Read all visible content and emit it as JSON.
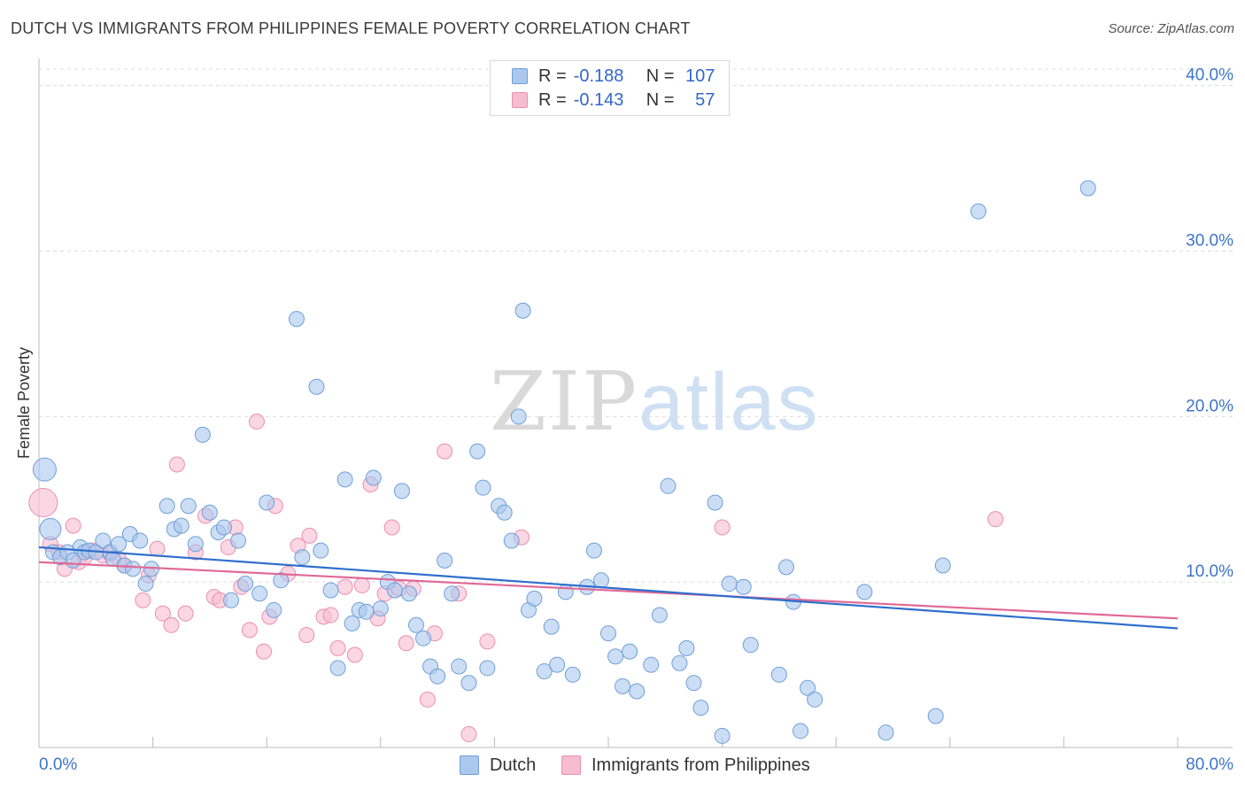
{
  "title": "DUTCH VS IMMIGRANTS FROM PHILIPPINES FEMALE POVERTY CORRELATION CHART",
  "source": "Source: ZipAtlas.com",
  "watermark": {
    "zip": "ZIP",
    "atlas": "atlas"
  },
  "legend": {
    "dutch": {
      "r_label": "R =",
      "r_value": "-0.188",
      "n_label": "N =",
      "n_value": "107"
    },
    "philippines": {
      "r_label": "R =",
      "r_value": "-0.143",
      "n_label": "N =",
      "n_value": "57"
    }
  },
  "bottom_legend": {
    "dutch": "Dutch",
    "philippines": "Immigrants from Philippines"
  },
  "colors": {
    "dutch_fill": "#aac8ee",
    "dutch_stroke": "#6f9fd8",
    "dutch_line": "#2f6fcc",
    "ph_fill": "#f6bcd0",
    "ph_stroke": "#ec8eb0",
    "ph_line": "#e06a96",
    "tick_label": "#3d74c9",
    "grid": "#dcdcdc"
  },
  "chart_data": {
    "type": "scatter",
    "title": "DUTCH VS IMMIGRANTS FROM PHILIPPINES FEMALE POVERTY CORRELATION CHART",
    "xlabel": "",
    "ylabel": "Female Poverty",
    "xlim": [
      0,
      80
    ],
    "ylim": [
      0,
      41
    ],
    "x_tick_labels": [
      "0.0%",
      "80.0%"
    ],
    "y_ticks": [
      10,
      20,
      30,
      40
    ],
    "y_tick_labels": [
      "10.0%",
      "20.0%",
      "30.0%",
      "40.0%"
    ],
    "grid": true,
    "series": [
      {
        "name": "Dutch",
        "points": [
          [
            0.4,
            16.8
          ],
          [
            0.8,
            13.2
          ],
          [
            1.0,
            11.8
          ],
          [
            1.5,
            11.5
          ],
          [
            2.0,
            11.8
          ],
          [
            2.4,
            11.3
          ],
          [
            2.9,
            12.1
          ],
          [
            3.2,
            11.8
          ],
          [
            3.5,
            11.9
          ],
          [
            4.0,
            11.8
          ],
          [
            4.5,
            12.5
          ],
          [
            5.0,
            11.8
          ],
          [
            5.2,
            11.4
          ],
          [
            5.6,
            12.3
          ],
          [
            6.0,
            11.0
          ],
          [
            6.4,
            12.9
          ],
          [
            6.6,
            10.8
          ],
          [
            7.1,
            12.5
          ],
          [
            7.5,
            9.9
          ],
          [
            7.9,
            10.8
          ],
          [
            9.0,
            14.6
          ],
          [
            9.5,
            13.2
          ],
          [
            10.0,
            13.4
          ],
          [
            10.5,
            14.6
          ],
          [
            11.0,
            12.3
          ],
          [
            11.5,
            18.9
          ],
          [
            12.0,
            14.2
          ],
          [
            12.6,
            13.0
          ],
          [
            13.0,
            13.3
          ],
          [
            13.5,
            8.9
          ],
          [
            14.0,
            12.5
          ],
          [
            14.5,
            9.9
          ],
          [
            15.5,
            9.3
          ],
          [
            16.0,
            14.8
          ],
          [
            16.5,
            8.3
          ],
          [
            17.0,
            10.1
          ],
          [
            18.1,
            25.9
          ],
          [
            18.5,
            11.5
          ],
          [
            19.5,
            21.8
          ],
          [
            19.8,
            11.9
          ],
          [
            20.5,
            9.5
          ],
          [
            21.0,
            4.8
          ],
          [
            21.5,
            16.2
          ],
          [
            22.0,
            7.5
          ],
          [
            22.5,
            8.3
          ],
          [
            23.0,
            8.2
          ],
          [
            23.5,
            16.3
          ],
          [
            24.0,
            8.4
          ],
          [
            24.5,
            10.0
          ],
          [
            25.0,
            9.5
          ],
          [
            25.5,
            15.5
          ],
          [
            26.0,
            9.3
          ],
          [
            26.5,
            7.4
          ],
          [
            27.0,
            6.6
          ],
          [
            27.5,
            4.9
          ],
          [
            28.0,
            4.3
          ],
          [
            28.5,
            11.3
          ],
          [
            29.0,
            9.3
          ],
          [
            29.5,
            4.9
          ],
          [
            30.2,
            3.9
          ],
          [
            30.8,
            17.9
          ],
          [
            31.2,
            15.7
          ],
          [
            31.5,
            4.8
          ],
          [
            32.3,
            14.6
          ],
          [
            32.7,
            14.2
          ],
          [
            33.2,
            12.5
          ],
          [
            33.7,
            20.0
          ],
          [
            34.0,
            26.4
          ],
          [
            34.4,
            8.3
          ],
          [
            34.8,
            9.0
          ],
          [
            35.5,
            4.6
          ],
          [
            36.0,
            7.3
          ],
          [
            36.4,
            5.0
          ],
          [
            37.0,
            9.4
          ],
          [
            37.5,
            4.4
          ],
          [
            38.5,
            9.7
          ],
          [
            39.0,
            11.9
          ],
          [
            39.5,
            10.1
          ],
          [
            40.0,
            6.9
          ],
          [
            40.5,
            5.5
          ],
          [
            41.0,
            3.7
          ],
          [
            41.5,
            5.8
          ],
          [
            42.0,
            3.4
          ],
          [
            43.0,
            5.0
          ],
          [
            43.6,
            8.0
          ],
          [
            44.2,
            15.8
          ],
          [
            45.0,
            5.1
          ],
          [
            45.5,
            6.0
          ],
          [
            46.0,
            3.9
          ],
          [
            46.5,
            2.4
          ],
          [
            47.5,
            14.8
          ],
          [
            48.0,
            0.7
          ],
          [
            48.5,
            9.9
          ],
          [
            49.5,
            9.7
          ],
          [
            50.0,
            6.2
          ],
          [
            52.0,
            4.4
          ],
          [
            52.5,
            10.9
          ],
          [
            53.0,
            8.8
          ],
          [
            53.5,
            1.0
          ],
          [
            54.0,
            3.6
          ],
          [
            54.5,
            2.9
          ],
          [
            58.0,
            9.4
          ],
          [
            59.5,
            0.9
          ],
          [
            63.0,
            1.9
          ],
          [
            63.5,
            11.0
          ],
          [
            66.0,
            32.4
          ],
          [
            73.7,
            33.8
          ]
        ],
        "trend": {
          "x": [
            0,
            80
          ],
          "y": [
            12.1,
            7.2
          ]
        }
      },
      {
        "name": "Immigrants from Philippines",
        "points": [
          [
            0.3,
            14.8
          ],
          [
            0.8,
            12.3
          ],
          [
            1.4,
            11.8
          ],
          [
            1.8,
            10.8
          ],
          [
            2.4,
            13.4
          ],
          [
            2.8,
            11.2
          ],
          [
            3.2,
            11.5
          ],
          [
            3.8,
            11.9
          ],
          [
            4.5,
            11.6
          ],
          [
            5.0,
            11.7
          ],
          [
            5.6,
            11.4
          ],
          [
            6.0,
            11.0
          ],
          [
            7.3,
            8.9
          ],
          [
            7.7,
            10.4
          ],
          [
            8.3,
            12.0
          ],
          [
            8.7,
            8.1
          ],
          [
            9.3,
            7.4
          ],
          [
            9.7,
            17.1
          ],
          [
            10.3,
            8.1
          ],
          [
            11.0,
            11.8
          ],
          [
            11.7,
            14.0
          ],
          [
            12.3,
            9.1
          ],
          [
            12.7,
            8.9
          ],
          [
            13.3,
            12.1
          ],
          [
            13.8,
            13.3
          ],
          [
            14.2,
            9.7
          ],
          [
            14.8,
            7.1
          ],
          [
            15.3,
            19.7
          ],
          [
            15.8,
            5.8
          ],
          [
            16.2,
            7.9
          ],
          [
            16.6,
            14.6
          ],
          [
            17.5,
            10.5
          ],
          [
            18.2,
            12.2
          ],
          [
            18.8,
            6.8
          ],
          [
            19.0,
            12.8
          ],
          [
            20.0,
            7.9
          ],
          [
            20.5,
            8.0
          ],
          [
            21.0,
            6.0
          ],
          [
            21.5,
            9.7
          ],
          [
            22.2,
            5.6
          ],
          [
            22.7,
            9.8
          ],
          [
            23.3,
            15.9
          ],
          [
            23.8,
            7.8
          ],
          [
            24.3,
            9.3
          ],
          [
            24.8,
            13.3
          ],
          [
            25.3,
            9.6
          ],
          [
            25.8,
            6.3
          ],
          [
            26.3,
            9.6
          ],
          [
            27.3,
            2.9
          ],
          [
            27.8,
            6.9
          ],
          [
            28.5,
            17.9
          ],
          [
            29.5,
            9.3
          ],
          [
            30.2,
            0.8
          ],
          [
            31.5,
            6.4
          ],
          [
            33.9,
            12.7
          ],
          [
            48.0,
            13.3
          ],
          [
            67.2,
            13.8
          ]
        ],
        "trend": {
          "x": [
            0,
            80
          ],
          "y": [
            11.2,
            7.8
          ]
        }
      }
    ]
  }
}
